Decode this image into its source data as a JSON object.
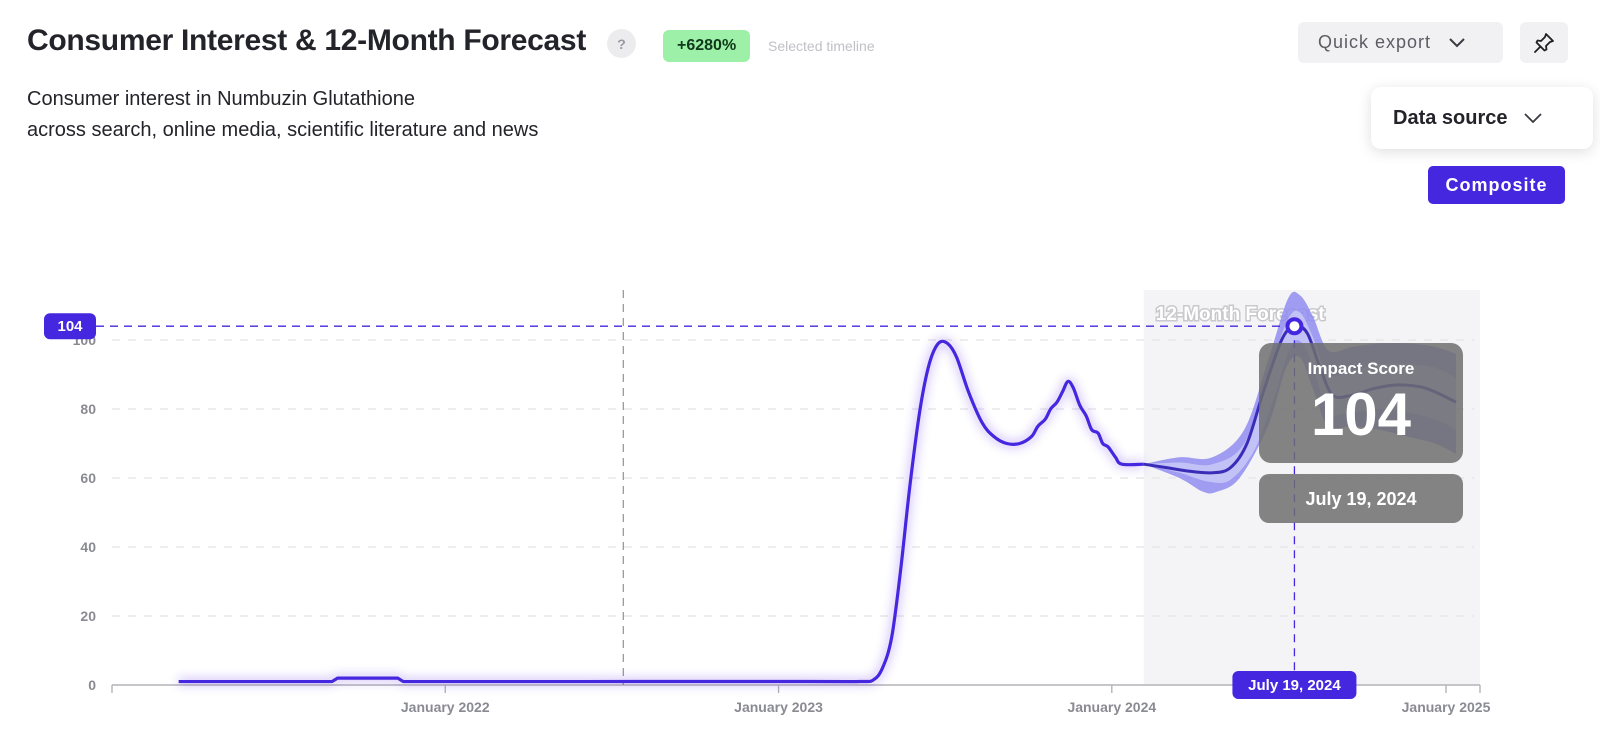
{
  "header": {
    "title": "Consumer Interest & 12-Month Forecast",
    "help_label": "?",
    "change_badge": "+6280%",
    "timeline_label": "Selected timeline",
    "subtitle_line1": "Consumer interest in Numbuzin Glutathione",
    "subtitle_line2": "across search, online media, scientific literature and news"
  },
  "controls": {
    "export_label": "Quick export",
    "data_source_label": "Data source",
    "composite_label": "Composite"
  },
  "tooltip": {
    "score_label": "Impact Score",
    "score_value": "104",
    "date": "July 19, 2024"
  },
  "colors": {
    "accent": "#4527e0",
    "band_outer": "#8f8cf0",
    "band_inner": "#c2c2f6",
    "badge_green": "#9df0a8",
    "forecast_shade": "#f4f4f6"
  },
  "chart_data": {
    "type": "line",
    "ylim": [
      0,
      110
    ],
    "yticks": [
      0,
      20,
      40,
      60,
      80,
      100
    ],
    "xrange": [
      "2021-02-01",
      "2025-01-01"
    ],
    "xticks": [
      {
        "date": "2022-01-01",
        "label": "January 2022"
      },
      {
        "date": "2023-01-01",
        "label": "January 2023"
      },
      {
        "date": "2024-01-01",
        "label": "January 2024"
      },
      {
        "date": "2025-01-01",
        "label": "January 2025"
      }
    ],
    "forecast_label": "12-Month Forecast",
    "forecast_start": "2024-02-05",
    "marker_date": "2022-07-15",
    "crosshair": {
      "date": "2024-07-19",
      "value": 104,
      "y_label": "104",
      "x_label": "July 19, 2024"
    },
    "history": [
      [
        "2021-03-15",
        1
      ],
      [
        "2021-08-30",
        1
      ],
      [
        "2021-09-05",
        2
      ],
      [
        "2021-11-10",
        2
      ],
      [
        "2021-11-16",
        1
      ],
      [
        "2022-06-01",
        1
      ],
      [
        "2023-02-01",
        1
      ],
      [
        "2023-04-01",
        1
      ],
      [
        "2023-04-15",
        1.5
      ],
      [
        "2023-04-25",
        5
      ],
      [
        "2023-05-05",
        14
      ],
      [
        "2023-05-15",
        34
      ],
      [
        "2023-05-25",
        58
      ],
      [
        "2023-06-05",
        80
      ],
      [
        "2023-06-15",
        93
      ],
      [
        "2023-06-25",
        99
      ],
      [
        "2023-07-05",
        99
      ],
      [
        "2023-07-15",
        95
      ],
      [
        "2023-07-28",
        85
      ],
      [
        "2023-08-12",
        76
      ],
      [
        "2023-08-25",
        72
      ],
      [
        "2023-09-08",
        70
      ],
      [
        "2023-09-22",
        70
      ],
      [
        "2023-10-05",
        72
      ],
      [
        "2023-10-12",
        75
      ],
      [
        "2023-10-20",
        77
      ],
      [
        "2023-10-26",
        80
      ],
      [
        "2023-11-02",
        82
      ],
      [
        "2023-11-08",
        85
      ],
      [
        "2023-11-14",
        88
      ],
      [
        "2023-11-20",
        86
      ],
      [
        "2023-11-27",
        81
      ],
      [
        "2023-12-04",
        78
      ],
      [
        "2023-12-10",
        74
      ],
      [
        "2023-12-17",
        73
      ],
      [
        "2023-12-22",
        70
      ],
      [
        "2023-12-28",
        69
      ],
      [
        "2024-01-05",
        66
      ],
      [
        "2024-01-12",
        64
      ],
      [
        "2024-02-05",
        64
      ]
    ],
    "forecast": [
      [
        "2024-02-05",
        64
      ],
      [
        "2024-03-01",
        63
      ],
      [
        "2024-03-25",
        62
      ],
      [
        "2024-04-20",
        61.5
      ],
      [
        "2024-05-10",
        63
      ],
      [
        "2024-05-28",
        70
      ],
      [
        "2024-06-15",
        85
      ],
      [
        "2024-07-05",
        100
      ],
      [
        "2024-07-19",
        104
      ],
      [
        "2024-08-02",
        102
      ],
      [
        "2024-08-16",
        92
      ],
      [
        "2024-08-30",
        84
      ],
      [
        "2024-09-20",
        84
      ],
      [
        "2024-10-15",
        86
      ],
      [
        "2024-11-10",
        87
      ],
      [
        "2024-12-10",
        86
      ],
      [
        "2025-01-12",
        82
      ]
    ],
    "band_outer_upper": [
      [
        "2024-02-05",
        64
      ],
      [
        "2024-03-15",
        66
      ],
      [
        "2024-04-20",
        66
      ],
      [
        "2024-05-25",
        74
      ],
      [
        "2024-06-20",
        94
      ],
      [
        "2024-07-12",
        112
      ],
      [
        "2024-07-25",
        113
      ],
      [
        "2024-08-08",
        107
      ],
      [
        "2024-08-25",
        97
      ],
      [
        "2024-09-20",
        98
      ],
      [
        "2024-10-20",
        99
      ],
      [
        "2024-11-20",
        99
      ],
      [
        "2024-12-20",
        98
      ],
      [
        "2025-01-12",
        96
      ]
    ],
    "band_outer_lower": [
      [
        "2024-02-05",
        64
      ],
      [
        "2024-03-15",
        60
      ],
      [
        "2024-04-10",
        56
      ],
      [
        "2024-04-25",
        56
      ],
      [
        "2024-05-20",
        60
      ],
      [
        "2024-06-20",
        75
      ],
      [
        "2024-07-10",
        92
      ],
      [
        "2024-07-25",
        95
      ],
      [
        "2024-08-08",
        86
      ],
      [
        "2024-08-25",
        75
      ],
      [
        "2024-09-20",
        75
      ],
      [
        "2024-10-20",
        74
      ],
      [
        "2024-11-20",
        72
      ],
      [
        "2024-12-20",
        70
      ],
      [
        "2025-01-12",
        67
      ]
    ],
    "band_inner_upper": [
      [
        "2024-02-05",
        64
      ],
      [
        "2024-03-15",
        64.5
      ],
      [
        "2024-04-20",
        64
      ],
      [
        "2024-05-25",
        70
      ],
      [
        "2024-06-20",
        90
      ],
      [
        "2024-07-12",
        106
      ],
      [
        "2024-07-25",
        108
      ],
      [
        "2024-08-08",
        101
      ],
      [
        "2024-08-25",
        90
      ],
      [
        "2024-09-20",
        91
      ],
      [
        "2024-10-20",
        93
      ],
      [
        "2024-11-20",
        93
      ],
      [
        "2024-12-20",
        92
      ],
      [
        "2025-01-12",
        89
      ]
    ],
    "band_inner_lower": [
      [
        "2024-02-05",
        64
      ],
      [
        "2024-03-15",
        61.5
      ],
      [
        "2024-04-15",
        59
      ],
      [
        "2024-05-10",
        59.5
      ],
      [
        "2024-06-05",
        68
      ],
      [
        "2024-06-25",
        82
      ],
      [
        "2024-07-15",
        98
      ],
      [
        "2024-07-28",
        99
      ],
      [
        "2024-08-10",
        91
      ],
      [
        "2024-08-25",
        79
      ],
      [
        "2024-09-20",
        79
      ],
      [
        "2024-10-20",
        80
      ],
      [
        "2024-11-20",
        79
      ],
      [
        "2024-12-20",
        77
      ],
      [
        "2025-01-12",
        74
      ]
    ]
  }
}
